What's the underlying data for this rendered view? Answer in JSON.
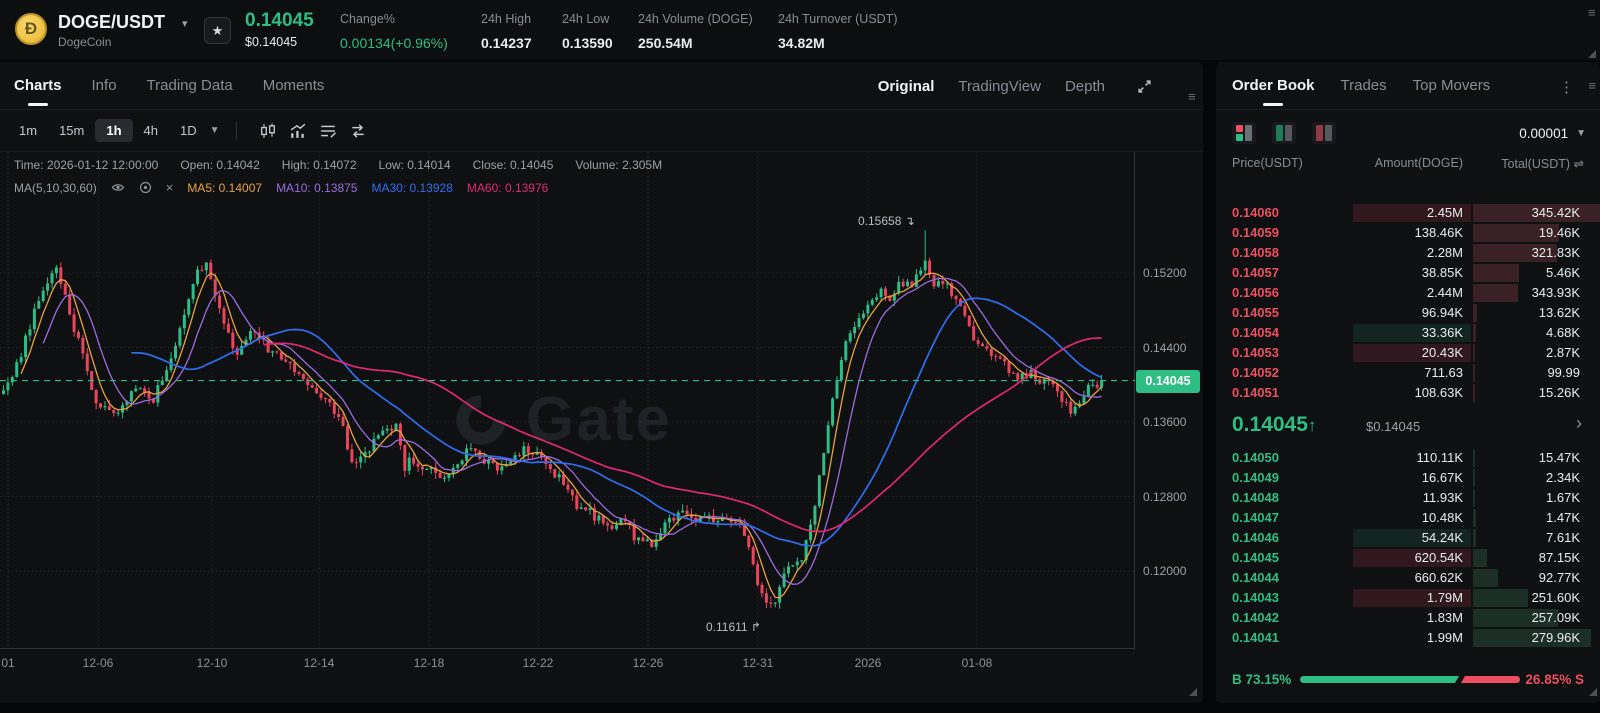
{
  "header": {
    "pair": "DOGE/USDT",
    "coin_name": "DogeCoin",
    "price": "0.14045",
    "price_usd": "$0.14045",
    "stats": [
      {
        "label": "Change%",
        "value": "0.00134(+0.96%)"
      },
      {
        "label": "24h High",
        "value": "0.14237"
      },
      {
        "label": "24h Low",
        "value": "0.13590"
      },
      {
        "label": "24h Volume (DOGE)",
        "value": "250.54M"
      },
      {
        "label": "24h Turnover (USDT)",
        "value": "34.82M"
      }
    ]
  },
  "chart_panel": {
    "tabs": [
      {
        "label": "Charts"
      },
      {
        "label": "Info"
      },
      {
        "label": "Trading Data"
      },
      {
        "label": "Moments"
      }
    ],
    "view_modes": [
      {
        "label": "Original"
      },
      {
        "label": "TradingView"
      },
      {
        "label": "Depth"
      }
    ],
    "timeframes": [
      {
        "label": "1m"
      },
      {
        "label": "15m"
      },
      {
        "label": "1h"
      },
      {
        "label": "4h"
      },
      {
        "label": "1D"
      }
    ],
    "active_timeframe": "1h",
    "ohlc": [
      {
        "label": "Time:",
        "value": "2026-01-12 12:00:00"
      },
      {
        "label": "Open:",
        "value": "0.14042"
      },
      {
        "label": "High:",
        "value": "0.14072"
      },
      {
        "label": "Low:",
        "value": "0.14014"
      },
      {
        "label": "Close:",
        "value": "0.14045"
      },
      {
        "label": "Volume:",
        "value": "2.305M"
      }
    ],
    "ma_title": "MA(5,10,30,60)",
    "ma_items": [
      {
        "label": "MA5:",
        "value": "0.14007",
        "color": "#e8a33d"
      },
      {
        "label": "MA10:",
        "value": "0.13875",
        "color": "#9a6ce0"
      },
      {
        "label": "MA30:",
        "value": "0.13928",
        "color": "#2f6ef0"
      },
      {
        "label": "MA60:",
        "value": "0.13976",
        "color": "#e0296f"
      }
    ],
    "watermark": "Gate"
  },
  "chart_data": {
    "type": "candlestick",
    "title": "DOGE/USDT 1h candlestick chart",
    "up_color": "#2ebd85",
    "down_color": "#e9455d",
    "ma_periods": [
      5,
      10,
      30,
      60
    ],
    "ma_colors": [
      "#e8a33d",
      "#9a6ce0",
      "#2f6ef0",
      "#e0296f"
    ],
    "y_ticks": [
      {
        "label": "0.15200",
        "price": 0.152
      },
      {
        "label": "0.14400",
        "price": 0.144
      },
      {
        "label": "0.13600",
        "price": 0.136
      },
      {
        "label": "0.12800",
        "price": 0.128
      },
      {
        "label": "0.12000",
        "price": 0.12
      }
    ],
    "x_ticks": [
      {
        "label": "01",
        "x": 8
      },
      {
        "label": "12-06",
        "x": 98
      },
      {
        "label": "12-10",
        "x": 212
      },
      {
        "label": "12-14",
        "x": 319
      },
      {
        "label": "12-18",
        "x": 429
      },
      {
        "label": "12-22",
        "x": 538
      },
      {
        "label": "12-26",
        "x": 648
      },
      {
        "label": "12-31",
        "x": 758
      },
      {
        "label": "2026",
        "x": 868
      },
      {
        "label": "01-08",
        "x": 977
      }
    ],
    "current_price": 0.14045,
    "current_price_label": "0.14045",
    "high_annotation": {
      "label": "0.15658",
      "price": 0.15658,
      "x": 925,
      "arrow": "↴"
    },
    "low_annotation": {
      "label": "0.11611",
      "price": 0.11611,
      "x": 772,
      "arrow": "↱"
    },
    "price_path": [
      [
        0,
        0.139
      ],
      [
        15,
        0.142
      ],
      [
        40,
        0.15
      ],
      [
        55,
        0.1525
      ],
      [
        70,
        0.147
      ],
      [
        95,
        0.1382
      ],
      [
        115,
        0.1372
      ],
      [
        135,
        0.1395
      ],
      [
        150,
        0.138
      ],
      [
        170,
        0.1425
      ],
      [
        195,
        0.152
      ],
      [
        205,
        0.1528
      ],
      [
        220,
        0.147
      ],
      [
        235,
        0.1428
      ],
      [
        250,
        0.1462
      ],
      [
        265,
        0.144
      ],
      [
        285,
        0.1425
      ],
      [
        300,
        0.141
      ],
      [
        320,
        0.139
      ],
      [
        340,
        0.136
      ],
      [
        352,
        0.1312
      ],
      [
        365,
        0.133
      ],
      [
        380,
        0.1345
      ],
      [
        395,
        0.1358
      ],
      [
        403,
        0.131
      ],
      [
        410,
        0.1322
      ],
      [
        425,
        0.1308
      ],
      [
        445,
        0.1302
      ],
      [
        465,
        0.133
      ],
      [
        480,
        0.1322
      ],
      [
        500,
        0.131
      ],
      [
        515,
        0.1328
      ],
      [
        530,
        0.133
      ],
      [
        545,
        0.131
      ],
      [
        560,
        0.1298
      ],
      [
        575,
        0.127
      ],
      [
        590,
        0.1262
      ],
      [
        605,
        0.1248
      ],
      [
        620,
        0.1255
      ],
      [
        635,
        0.1235
      ],
      [
        650,
        0.1228
      ],
      [
        665,
        0.1255
      ],
      [
        680,
        0.126
      ],
      [
        695,
        0.1252
      ],
      [
        710,
        0.1256
      ],
      [
        725,
        0.1258
      ],
      [
        740,
        0.125
      ],
      [
        748,
        0.122
      ],
      [
        755,
        0.119
      ],
      [
        765,
        0.117
      ],
      [
        772,
        0.1165
      ],
      [
        780,
        0.119
      ],
      [
        790,
        0.1205
      ],
      [
        800,
        0.1215
      ],
      [
        808,
        0.124
      ],
      [
        815,
        0.128
      ],
      [
        822,
        0.133
      ],
      [
        830,
        0.138
      ],
      [
        838,
        0.142
      ],
      [
        848,
        0.1455
      ],
      [
        858,
        0.1475
      ],
      [
        868,
        0.149
      ],
      [
        878,
        0.15
      ],
      [
        888,
        0.1495
      ],
      [
        898,
        0.151
      ],
      [
        908,
        0.1505
      ],
      [
        918,
        0.152
      ],
      [
        925,
        0.153
      ],
      [
        932,
        0.1505
      ],
      [
        940,
        0.1512
      ],
      [
        950,
        0.15
      ],
      [
        960,
        0.1478
      ],
      [
        970,
        0.1452
      ],
      [
        980,
        0.144
      ],
      [
        990,
        0.143
      ],
      [
        1000,
        0.1422
      ],
      [
        1010,
        0.1415
      ],
      [
        1020,
        0.1408
      ],
      [
        1030,
        0.1412
      ],
      [
        1040,
        0.1405
      ],
      [
        1050,
        0.1398
      ],
      [
        1060,
        0.1385
      ],
      [
        1070,
        0.1372
      ],
      [
        1080,
        0.1388
      ],
      [
        1090,
        0.1398
      ],
      [
        1100,
        0.14045
      ]
    ]
  },
  "orderbook": {
    "tabs": [
      {
        "label": "Order Book"
      },
      {
        "label": "Trades"
      },
      {
        "label": "Top Movers"
      }
    ],
    "tick_size": "0.00001",
    "columns": {
      "price": "Price(USDT)",
      "amount": "Amount(DOGE)",
      "total": "Total(USDT)",
      "total_icon": "⇌"
    },
    "asks": [
      {
        "price": "0.14060",
        "amount": "2.45M",
        "total": "345.42K",
        "flash": "red"
      },
      {
        "price": "0.14059",
        "amount": "138.46K",
        "total": "19.46K",
        "flash": null
      },
      {
        "price": "0.14058",
        "amount": "2.28M",
        "total": "321.83K",
        "flash": null
      },
      {
        "price": "0.14057",
        "amount": "38.85K",
        "total": "5.46K",
        "flash": null
      },
      {
        "price": "0.14056",
        "amount": "2.44M",
        "total": "343.93K",
        "flash": null
      },
      {
        "price": "0.14055",
        "amount": "96.94K",
        "total": "13.62K",
        "flash": null
      },
      {
        "price": "0.14054",
        "amount": "33.36K",
        "total": "4.68K",
        "flash": "green"
      },
      {
        "price": "0.14053",
        "amount": "20.43K",
        "total": "2.87K",
        "flash": "red"
      },
      {
        "price": "0.14052",
        "amount": "711.63",
        "total": "99.99",
        "flash": null
      },
      {
        "price": "0.14051",
        "amount": "108.63K",
        "total": "15.26K",
        "flash": null
      }
    ],
    "mid": {
      "price": "0.14045",
      "arrow": "↑",
      "usd": "$0.14045",
      "chevron": "›"
    },
    "bids": [
      {
        "price": "0.14050",
        "amount": "110.11K",
        "total": "15.47K",
        "flash": null
      },
      {
        "price": "0.14049",
        "amount": "16.67K",
        "total": "2.34K",
        "flash": null
      },
      {
        "price": "0.14048",
        "amount": "11.93K",
        "total": "1.67K",
        "flash": null
      },
      {
        "price": "0.14047",
        "amount": "10.48K",
        "total": "1.47K",
        "flash": null
      },
      {
        "price": "0.14046",
        "amount": "54.24K",
        "total": "7.61K",
        "flash": "green"
      },
      {
        "price": "0.14045",
        "amount": "620.54K",
        "total": "87.15K",
        "flash": "red"
      },
      {
        "price": "0.14044",
        "amount": "660.62K",
        "total": "92.77K",
        "flash": null
      },
      {
        "price": "0.14043",
        "amount": "1.79M",
        "total": "251.60K",
        "flash": "red"
      },
      {
        "price": "0.14042",
        "amount": "1.83M",
        "total": "257.09K",
        "flash": null
      },
      {
        "price": "0.14041",
        "amount": "1.99M",
        "total": "279.96K",
        "flash": null
      }
    ],
    "ratio": {
      "buy_label": "B",
      "buy_pct": "73.15%",
      "sell_pct": "26.85%",
      "sell_label": "S",
      "buy_value": 73.15,
      "sell_value": 26.85
    }
  },
  "colors": {
    "green": "#2ebd85",
    "red": "#ee4f60",
    "ask_bar": "#38texture",
    "ask_depth": "#3a2125",
    "bid_depth": "#1b2f27",
    "flash_red": "rgba(233,69,93,0.16)",
    "flash_green": "rgba(46,189,133,0.12)"
  }
}
